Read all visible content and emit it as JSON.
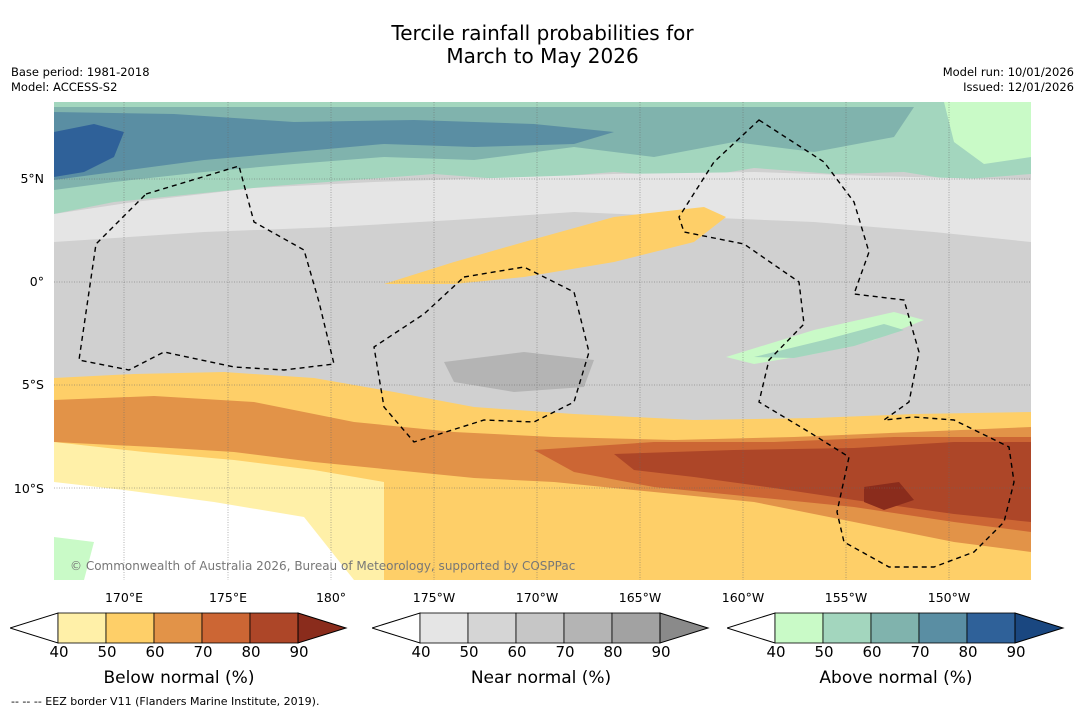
{
  "title": {
    "line1": "Tercile rainfall probabilities for",
    "line2": "March to May 2026"
  },
  "meta_left": {
    "base_period": "Base period: 1981-2018",
    "model": "Model: ACCESS-S2"
  },
  "meta_right": {
    "model_run": "Model run: 10/01/2026",
    "issued": "Issued: 12/01/2026"
  },
  "map": {
    "copyright": "© Commonwealth of Australia 2026, Bureau of Meteorology, supported by COSPPac",
    "lat_labels": [
      "5°N",
      "0°",
      "5°S",
      "10°S"
    ],
    "lon_labels": [
      "170°E",
      "175°E",
      "180°",
      "175°W",
      "170°W",
      "165°W",
      "160°W",
      "155°W",
      "150°W"
    ],
    "colors": {
      "below": [
        "#fff0a8",
        "#fecf68",
        "#e29348",
        "#cc6634",
        "#ad4628",
        "#8a2c1c"
      ],
      "near": [
        "#e5e5e5",
        "#d5d5d5",
        "#c6c6c6",
        "#b4b4b4",
        "#a2a2a2",
        "#8a8a8a"
      ],
      "above": [
        "#c9fac7",
        "#a3d6be",
        "#80b3ad",
        "#5a8ea3",
        "#2f6199",
        "#1a4780"
      ]
    }
  },
  "colorbars": [
    {
      "label": "Below normal (%)",
      "ticks": [
        "40",
        "50",
        "60",
        "70",
        "80",
        "90"
      ]
    },
    {
      "label": "Near normal (%)",
      "ticks": [
        "40",
        "50",
        "60",
        "70",
        "80",
        "90"
      ]
    },
    {
      "label": "Above normal (%)",
      "ticks": [
        "40",
        "50",
        "60",
        "70",
        "80",
        "90"
      ]
    }
  ],
  "footer": "--  --  -- EEZ border V11 (Flanders Marine Institute, 2019)."
}
